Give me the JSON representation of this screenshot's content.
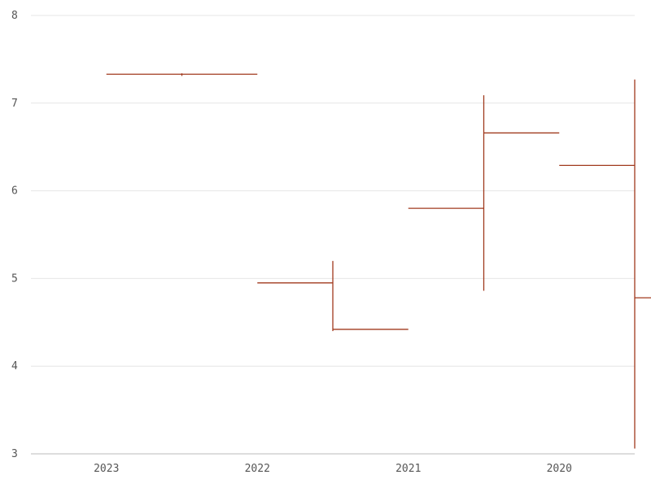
{
  "chart_data": {
    "type": "ohlc",
    "categories": [
      "2023",
      "2022",
      "2021",
      "2020"
    ],
    "series": [
      {
        "values": [
          {
            "x": "2023",
            "open": 7.33,
            "high": 7.34,
            "low": 7.31,
            "close": 7.33
          },
          {
            "x": "2022",
            "open": 4.95,
            "high": 5.2,
            "low": 4.4,
            "close": 4.42
          },
          {
            "x": "2021",
            "open": 5.8,
            "high": 7.09,
            "low": 4.86,
            "close": 6.66
          },
          {
            "x": "2020",
            "open": 6.29,
            "high": 7.27,
            "low": 3.06,
            "close": 4.78
          }
        ]
      }
    ],
    "color": "#a0391d",
    "ylim": [
      3,
      8
    ],
    "yticks": [
      3,
      4,
      5,
      6,
      7,
      8
    ],
    "ytick_labels": [
      "3",
      "4",
      "5",
      "6",
      "7",
      "8"
    ],
    "grid": true,
    "title": "",
    "xlabel": "",
    "ylabel": ""
  }
}
